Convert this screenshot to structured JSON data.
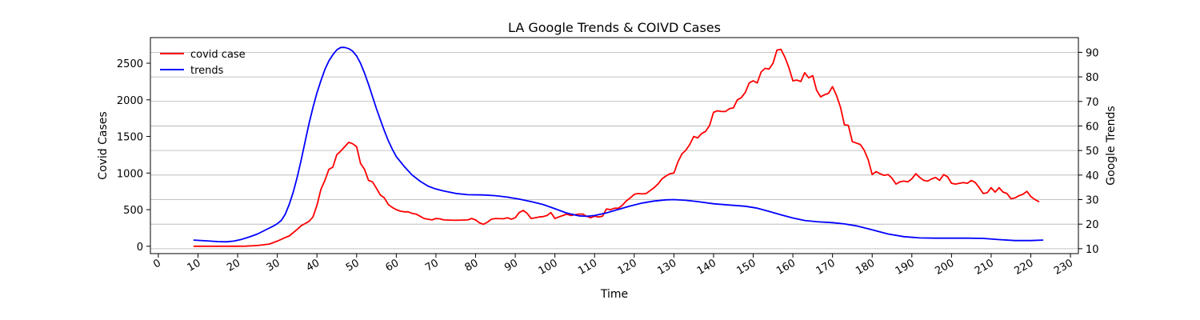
{
  "chart_data": {
    "type": "line",
    "title": "LA Google Trends & COIVD Cases",
    "xlabel": "Time",
    "ylabel_left": "Covid Cases",
    "ylabel_right": "Google Trends",
    "xlim": [
      -2,
      232
    ],
    "ylim_left": [
      -100,
      2850
    ],
    "ylim_right": [
      8,
      96
    ],
    "x_ticks": [
      0,
      10,
      20,
      30,
      40,
      50,
      60,
      70,
      80,
      90,
      100,
      110,
      120,
      130,
      140,
      150,
      160,
      170,
      180,
      190,
      200,
      210,
      220,
      230
    ],
    "y_ticks_left": [
      0,
      500,
      1000,
      1500,
      2000,
      2500
    ],
    "y_ticks_right": [
      10,
      20,
      30,
      40,
      50,
      60,
      70,
      80,
      90
    ],
    "grid": "horizontal lines at right-axis ticks",
    "legend_position": "top-left",
    "series": [
      {
        "name": "covid case",
        "color": "#ff0000",
        "axis": "left",
        "points": [
          [
            9,
            0
          ],
          [
            15,
            0
          ],
          [
            20,
            0
          ],
          [
            22,
            2
          ],
          [
            25,
            10
          ],
          [
            28,
            30
          ],
          [
            30,
            70
          ],
          [
            32,
            120
          ],
          [
            33,
            140
          ],
          [
            35,
            230
          ],
          [
            36,
            280
          ],
          [
            37,
            310
          ],
          [
            38,
            340
          ],
          [
            39,
            400
          ],
          [
            40,
            560
          ],
          [
            41,
            780
          ],
          [
            42,
            900
          ],
          [
            43,
            1050
          ],
          [
            44,
            1080
          ],
          [
            45,
            1250
          ],
          [
            46,
            1300
          ],
          [
            47,
            1360
          ],
          [
            48,
            1420
          ],
          [
            49,
            1400
          ],
          [
            50,
            1360
          ],
          [
            51,
            1130
          ],
          [
            52,
            1050
          ],
          [
            53,
            900
          ],
          [
            54,
            880
          ],
          [
            55,
            790
          ],
          [
            56,
            700
          ],
          [
            57,
            660
          ],
          [
            58,
            570
          ],
          [
            59,
            530
          ],
          [
            60,
            500
          ],
          [
            61,
            480
          ],
          [
            62,
            470
          ],
          [
            63,
            470
          ],
          [
            64,
            450
          ],
          [
            65,
            440
          ],
          [
            66,
            410
          ],
          [
            67,
            380
          ],
          [
            68,
            370
          ],
          [
            69,
            360
          ],
          [
            70,
            380
          ],
          [
            71,
            375
          ],
          [
            72,
            360
          ],
          [
            75,
            355
          ],
          [
            78,
            360
          ],
          [
            79,
            380
          ],
          [
            80,
            360
          ],
          [
            81,
            320
          ],
          [
            82,
            300
          ],
          [
            83,
            330
          ],
          [
            84,
            370
          ],
          [
            85,
            380
          ],
          [
            87,
            375
          ],
          [
            88,
            390
          ],
          [
            89,
            370
          ],
          [
            90,
            390
          ],
          [
            91,
            460
          ],
          [
            92,
            490
          ],
          [
            93,
            450
          ],
          [
            94,
            380
          ],
          [
            95,
            390
          ],
          [
            96,
            400
          ],
          [
            97,
            405
          ],
          [
            98,
            420
          ],
          [
            99,
            460
          ],
          [
            100,
            380
          ],
          [
            101,
            400
          ],
          [
            102,
            420
          ],
          [
            103,
            440
          ],
          [
            104,
            420
          ],
          [
            105,
            430
          ],
          [
            106,
            440
          ],
          [
            107,
            440
          ],
          [
            108,
            410
          ],
          [
            109,
            390
          ],
          [
            110,
            410
          ],
          [
            111,
            400
          ],
          [
            112,
            410
          ],
          [
            113,
            510
          ],
          [
            114,
            500
          ],
          [
            115,
            520
          ],
          [
            116,
            520
          ],
          [
            117,
            560
          ],
          [
            118,
            620
          ],
          [
            119,
            660
          ],
          [
            120,
            710
          ],
          [
            121,
            720
          ],
          [
            122,
            715
          ],
          [
            123,
            720
          ],
          [
            124,
            760
          ],
          [
            125,
            800
          ],
          [
            126,
            850
          ],
          [
            127,
            920
          ],
          [
            128,
            960
          ],
          [
            129,
            990
          ],
          [
            130,
            1000
          ],
          [
            131,
            1150
          ],
          [
            132,
            1260
          ],
          [
            133,
            1310
          ],
          [
            134,
            1390
          ],
          [
            135,
            1500
          ],
          [
            136,
            1480
          ],
          [
            137,
            1540
          ],
          [
            138,
            1570
          ],
          [
            139,
            1650
          ],
          [
            140,
            1830
          ],
          [
            141,
            1850
          ],
          [
            142,
            1840
          ],
          [
            143,
            1840
          ],
          [
            144,
            1880
          ],
          [
            145,
            1890
          ],
          [
            146,
            2000
          ],
          [
            147,
            2030
          ],
          [
            148,
            2100
          ],
          [
            149,
            2230
          ],
          [
            150,
            2260
          ],
          [
            151,
            2230
          ],
          [
            152,
            2380
          ],
          [
            153,
            2430
          ],
          [
            154,
            2420
          ],
          [
            155,
            2500
          ],
          [
            156,
            2680
          ],
          [
            157,
            2690
          ],
          [
            158,
            2580
          ],
          [
            159,
            2440
          ],
          [
            160,
            2260
          ],
          [
            161,
            2270
          ],
          [
            162,
            2250
          ],
          [
            163,
            2370
          ],
          [
            164,
            2300
          ],
          [
            165,
            2330
          ],
          [
            166,
            2130
          ],
          [
            167,
            2040
          ],
          [
            168,
            2070
          ],
          [
            169,
            2090
          ],
          [
            170,
            2180
          ],
          [
            171,
            2060
          ],
          [
            172,
            1900
          ],
          [
            173,
            1660
          ],
          [
            174,
            1650
          ],
          [
            175,
            1430
          ],
          [
            176,
            1410
          ],
          [
            177,
            1390
          ],
          [
            178,
            1310
          ],
          [
            179,
            1180
          ],
          [
            180,
            980
          ],
          [
            181,
            1020
          ],
          [
            182,
            990
          ],
          [
            183,
            970
          ],
          [
            184,
            980
          ],
          [
            185,
            930
          ],
          [
            186,
            850
          ],
          [
            187,
            880
          ],
          [
            188,
            890
          ],
          [
            189,
            880
          ],
          [
            190,
            920
          ],
          [
            191,
            990
          ],
          [
            192,
            940
          ],
          [
            193,
            900
          ],
          [
            194,
            890
          ],
          [
            195,
            920
          ],
          [
            196,
            940
          ],
          [
            197,
            900
          ],
          [
            198,
            980
          ],
          [
            199,
            950
          ],
          [
            200,
            860
          ],
          [
            201,
            850
          ],
          [
            202,
            860
          ],
          [
            203,
            870
          ],
          [
            204,
            860
          ],
          [
            205,
            900
          ],
          [
            206,
            870
          ],
          [
            207,
            800
          ],
          [
            208,
            720
          ],
          [
            209,
            730
          ],
          [
            210,
            800
          ],
          [
            211,
            740
          ],
          [
            212,
            800
          ],
          [
            213,
            740
          ],
          [
            214,
            720
          ],
          [
            215,
            650
          ],
          [
            216,
            660
          ],
          [
            217,
            690
          ],
          [
            218,
            710
          ],
          [
            219,
            750
          ],
          [
            220,
            680
          ],
          [
            221,
            640
          ],
          [
            222,
            610
          ]
        ]
      },
      {
        "name": "trends",
        "color": "#0000ff",
        "axis": "right",
        "points": [
          [
            9,
            13.5
          ],
          [
            12,
            13.2
          ],
          [
            15,
            12.9
          ],
          [
            17,
            12.8
          ],
          [
            19,
            13.1
          ],
          [
            21,
            13.8
          ],
          [
            23,
            14.8
          ],
          [
            25,
            16.0
          ],
          [
            27,
            17.6
          ],
          [
            29,
            19.2
          ],
          [
            30,
            20.2
          ],
          [
            31,
            21.5
          ],
          [
            32,
            24.0
          ],
          [
            33,
            28.0
          ],
          [
            34,
            33.0
          ],
          [
            35,
            39.0
          ],
          [
            36,
            46.0
          ],
          [
            37,
            53.5
          ],
          [
            38,
            61.0
          ],
          [
            39,
            67.5
          ],
          [
            40,
            73.5
          ],
          [
            41,
            78.5
          ],
          [
            42,
            83.0
          ],
          [
            43,
            86.5
          ],
          [
            44,
            89.0
          ],
          [
            45,
            91.0
          ],
          [
            46,
            92.0
          ],
          [
            47,
            92.0
          ],
          [
            48,
            91.5
          ],
          [
            49,
            90.5
          ],
          [
            50,
            88.5
          ],
          [
            51,
            85.5
          ],
          [
            52,
            81.5
          ],
          [
            53,
            77.0
          ],
          [
            54,
            72.0
          ],
          [
            55,
            67.0
          ],
          [
            56,
            62.5
          ],
          [
            57,
            58.0
          ],
          [
            58,
            54.0
          ],
          [
            59,
            50.5
          ],
          [
            60,
            47.5
          ],
          [
            62,
            43.5
          ],
          [
            64,
            40.0
          ],
          [
            66,
            37.5
          ],
          [
            68,
            35.5
          ],
          [
            70,
            34.3
          ],
          [
            72,
            33.5
          ],
          [
            75,
            32.5
          ],
          [
            78,
            32.0
          ],
          [
            82,
            31.9
          ],
          [
            85,
            31.6
          ],
          [
            88,
            31.0
          ],
          [
            91,
            30.2
          ],
          [
            94,
            29.2
          ],
          [
            97,
            28.0
          ],
          [
            100,
            26.3
          ],
          [
            103,
            24.5
          ],
          [
            106,
            23.4
          ],
          [
            108,
            23.2
          ],
          [
            110,
            23.5
          ],
          [
            113,
            24.6
          ],
          [
            116,
            26.0
          ],
          [
            119,
            27.4
          ],
          [
            122,
            28.6
          ],
          [
            125,
            29.4
          ],
          [
            128,
            29.9
          ],
          [
            130,
            30.0
          ],
          [
            133,
            29.7
          ],
          [
            136,
            29.2
          ],
          [
            140,
            28.3
          ],
          [
            144,
            27.8
          ],
          [
            148,
            27.3
          ],
          [
            151,
            26.5
          ],
          [
            154,
            25.2
          ],
          [
            157,
            23.8
          ],
          [
            160,
            22.5
          ],
          [
            163,
            21.5
          ],
          [
            166,
            21.0
          ],
          [
            170,
            20.6
          ],
          [
            173,
            20.1
          ],
          [
            176,
            19.3
          ],
          [
            180,
            17.7
          ],
          [
            184,
            16.0
          ],
          [
            188,
            14.9
          ],
          [
            192,
            14.4
          ],
          [
            196,
            14.3
          ],
          [
            200,
            14.3
          ],
          [
            204,
            14.3
          ],
          [
            208,
            14.2
          ],
          [
            212,
            13.7
          ],
          [
            216,
            13.3
          ],
          [
            220,
            13.3
          ],
          [
            223,
            13.5
          ]
        ]
      }
    ]
  }
}
